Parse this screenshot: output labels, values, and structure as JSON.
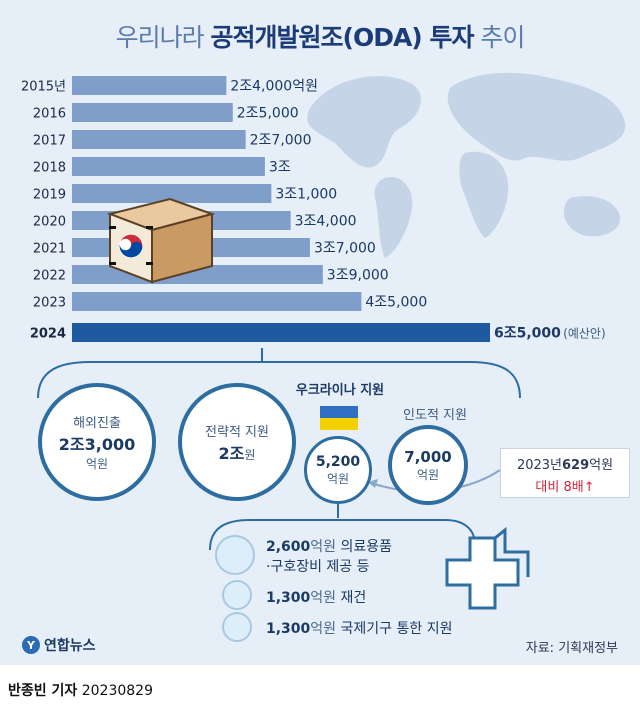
{
  "title": {
    "light_part": "우리나라",
    "bold_part": "공적개발원조(ODA) 투자",
    "light_end": "추이"
  },
  "chart_data": {
    "type": "bar",
    "orientation": "horizontal",
    "categories": [
      "2015년",
      "2016",
      "2017",
      "2018",
      "2019",
      "2020",
      "2021",
      "2022",
      "2023",
      "2024"
    ],
    "values": [
      24000,
      25000,
      27000,
      30000,
      31000,
      34000,
      37000,
      39000,
      45000,
      65000
    ],
    "value_unit": "억원",
    "data_labels": [
      "2조4,000억원",
      "2조5,000",
      "2조7,000",
      "3조",
      "3조1,000",
      "3조4,000",
      "3조7,000",
      "3조9,000",
      "4조5,000",
      "6조5,000"
    ],
    "label_notes": [
      "",
      "",
      "",
      "",
      "",
      "",
      "",
      "",
      "",
      "(예산안)"
    ],
    "highlight_index": 9,
    "colors": {
      "bar": "#7f9fca",
      "highlight": "#1f5aa0"
    }
  },
  "breakdown": {
    "overseas": {
      "label": "해외진출",
      "amount": "2조3,000",
      "unit": "억원"
    },
    "strategic": {
      "label": "전략적 지원",
      "amount": "2조",
      "unit": "원"
    },
    "ukraine": {
      "label": "우크라이나 지원",
      "amount": "5,200",
      "unit": "억원"
    },
    "humanitarian": {
      "label": "인도적 지원",
      "amount": "7,000",
      "unit": "억원"
    }
  },
  "ukraine_items": [
    {
      "amount": "2,600",
      "unit": "억원",
      "text": "의료용품",
      "text2": "·구호장비 제공 등"
    },
    {
      "amount": "1,300",
      "unit": "억원",
      "text": "재건",
      "text2": ""
    },
    {
      "amount": "1,300",
      "unit": "억원",
      "text": "국제기구 통한 지원",
      "text2": ""
    }
  ],
  "comparison": {
    "prefix": "2023년",
    "amount": "629",
    "unit": "억원",
    "line2": "대비 8배↑"
  },
  "logo": {
    "text": "연합뉴스",
    "mark": "Y"
  },
  "source": "자료: 기획재정부",
  "footer": {
    "author": "반종빈 기자",
    "date": "20230829"
  },
  "colors": {
    "accent": "#1f5aa0",
    "circle_border": "#2e6da0",
    "red": "#d7263d"
  }
}
